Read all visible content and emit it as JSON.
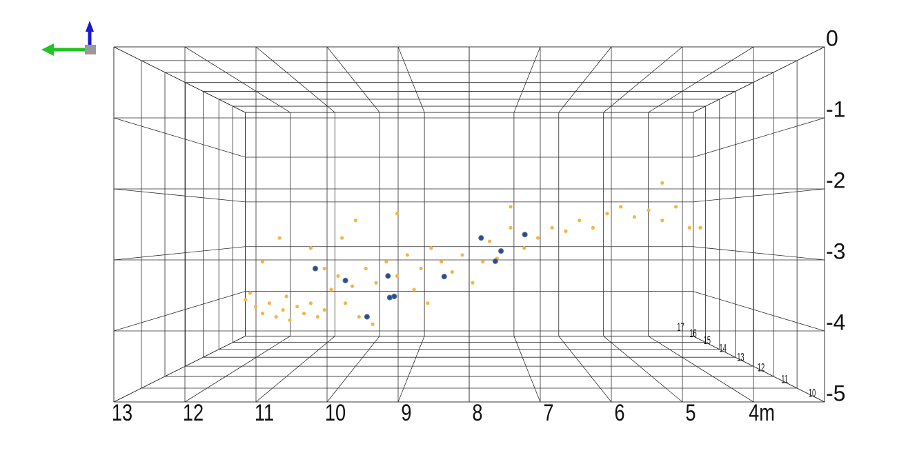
{
  "chart_data": {
    "type": "scatter3d",
    "xlim": [
      13,
      3
    ],
    "xticks": [
      13,
      12,
      11,
      10,
      9,
      8,
      7,
      6,
      5,
      {
        "value": 4,
        "label": "4m"
      }
    ],
    "ylim": [
      10,
      17
    ],
    "yticks": [
      10,
      11,
      12,
      13,
      14,
      15,
      16,
      17
    ],
    "zlim": [
      -5,
      0
    ],
    "zticks": [
      0,
      -1,
      -2,
      -3,
      -4,
      -5
    ],
    "grid": true,
    "series": [
      {
        "color": "#f6b445",
        "x": [
          11.94,
          11.86,
          11.76,
          11.64,
          11.52,
          11.4,
          11.28,
          11.22,
          11.16,
          11.03,
          10.91,
          10.79,
          10.67,
          10.55,
          10.43,
          10.31,
          10.18,
          10.06,
          9.94,
          9.82,
          9.64,
          9.46,
          9.27,
          9.09,
          8.97,
          8.85,
          8.67,
          8.49,
          8.3,
          8.12,
          7.94,
          7.76,
          7.64,
          7.51,
          7.27,
          7.03,
          6.79,
          6.54,
          6.3,
          6.06,
          5.82,
          5.57,
          5.33,
          5.09,
          4.84,
          4.6,
          4.36,
          4.12,
          3.93,
          11.34,
          10.79,
          10.24,
          10.0,
          9.27,
          4.6,
          7.27,
          8.73,
          9.7,
          11.64,
          10.55
        ],
        "y": [
          13,
          13,
          13,
          13,
          13,
          13,
          13,
          13,
          13,
          13,
          13,
          13,
          13,
          13,
          13,
          13,
          13,
          13,
          13,
          13,
          13,
          13,
          13,
          13,
          13,
          13,
          13,
          13,
          13,
          13,
          13,
          13,
          13,
          13,
          13,
          13,
          13,
          13,
          13,
          13,
          13,
          13,
          13,
          13,
          13,
          13,
          13,
          13,
          13,
          13,
          13,
          13,
          13,
          13,
          13,
          13,
          13,
          13,
          13,
          13
        ],
        "z": [
          -3.83,
          -3.71,
          -3.95,
          -4.07,
          -3.89,
          -4.13,
          -4.01,
          -3.77,
          -4.19,
          -3.95,
          -4.07,
          -3.89,
          -4.13,
          -4.01,
          -3.65,
          -3.41,
          -3.89,
          -3.59,
          -4.13,
          -3.28,
          -3.53,
          -3.16,
          -3.41,
          -3.04,
          -3.65,
          -3.28,
          -2.92,
          -3.16,
          -3.34,
          -3.04,
          -3.53,
          -3.16,
          -2.8,
          -3.1,
          -2.56,
          -2.92,
          -2.74,
          -2.56,
          -2.62,
          -2.43,
          -2.56,
          -2.31,
          -2.19,
          -2.37,
          -2.25,
          -2.43,
          -2.19,
          -2.56,
          -2.56,
          -2.74,
          -2.92,
          -2.74,
          -2.43,
          -2.31,
          -1.77,
          -2.19,
          -3.89,
          -4.26,
          -3.16,
          -3.28
        ]
      },
      {
        "color": "#1f4f9e",
        "x": [
          10.71,
          10.18,
          9.8,
          9.43,
          9.4,
          9.32,
          8.44,
          7.79,
          7.54,
          7.44,
          7.02
        ],
        "y": [
          13,
          13,
          13,
          13,
          13,
          13,
          13,
          13,
          13,
          13,
          13
        ],
        "z": [
          -3.28,
          -3.49,
          -4.13,
          -3.41,
          -3.79,
          -3.77,
          -3.42,
          -2.74,
          -3.15,
          -2.97,
          -2.68
        ]
      }
    ]
  }
}
